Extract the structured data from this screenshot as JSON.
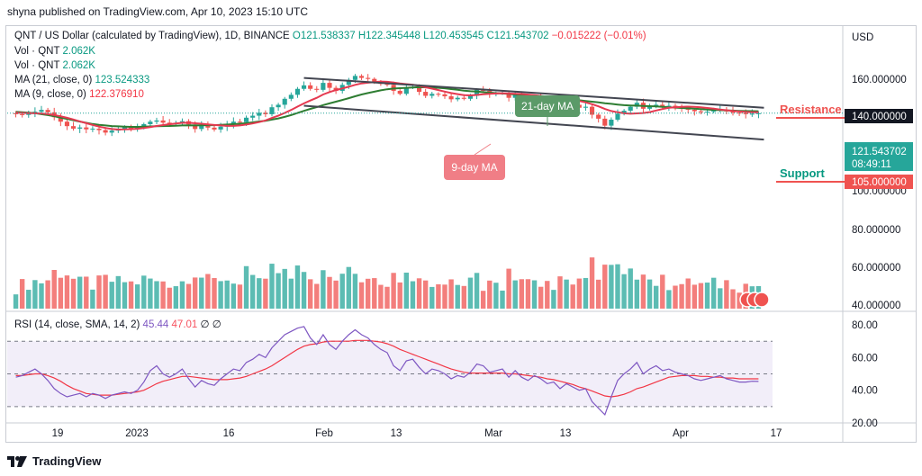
{
  "header": {
    "published": "shyna published on TradingView.com, Apr 10, 2023 15:10 UTC"
  },
  "legend": {
    "symbol": "QNT / US Dollar (calculated by TradingView), 1D, BINANCE",
    "open": "O121.538337",
    "high": "H122.345448",
    "low": "L120.453545",
    "close": "C121.543702",
    "change": "−0.015222 (−0.01%)",
    "vol1_label": "Vol · QNT",
    "vol1_value": "2.062K",
    "vol2_label": "Vol · QNT",
    "vol2_value": "2.062K",
    "ma21_label": "MA (21, close, 0)",
    "ma21_value": "123.524333",
    "ma9_label": "MA (9, close, 0)",
    "ma9_value": "122.376910",
    "rsi_label": "RSI (14, close, SMA, 14, 2)",
    "rsi_value": "45.44",
    "rsi_sma_value": "47.01",
    "rsi_extra": "∅ ∅"
  },
  "price_axis": {
    "currency": "USD",
    "ticks": [
      "160.000000",
      "140.000000",
      "121.543702",
      "08:49:11",
      "105.000000",
      "100.000000",
      "80.000000",
      "60.000000",
      "40.000000"
    ],
    "current_price": "121.543702",
    "countdown": "08:49:11"
  },
  "rsi_axis": {
    "ticks": [
      "80.00",
      "60.00",
      "40.00",
      "20.00"
    ]
  },
  "time_axis": {
    "ticks": [
      "19",
      "2023",
      "16",
      "Feb",
      "13",
      "Mar",
      "13",
      "Apr",
      "17"
    ]
  },
  "annotations": {
    "resistance_label": "Resistance",
    "resistance_price": "140.000000",
    "support_label": "Support",
    "support_price": "105.000000",
    "ma21_callout": "21-day MA",
    "ma9_callout": "9-day MA"
  },
  "footer": {
    "brand": "TradingView"
  },
  "colors": {
    "up": "#26a69a",
    "down": "#ef5350",
    "ma21": "#2e7d32",
    "ma9": "#e53950",
    "rsi": "#7e57c2",
    "rsi_sma": "#f23645",
    "channel": "#434651"
  },
  "chart_data": [
    {
      "type": "candlestick",
      "title": "QNT / US Dollar (calculated by TradingView), 1D, BINANCE",
      "x_start": "2022-12-12",
      "x_end": "2023-04-10",
      "ylim": [
        95,
        170
      ],
      "closes": [
        120.5,
        119.8,
        121,
        123,
        124.8,
        122.4,
        117.5,
        113,
        108.5,
        106,
        107.2,
        105.3,
        106,
        104.5,
        102,
        104,
        105.6,
        107.5,
        106.3,
        108,
        110.5,
        113,
        114.2,
        112,
        110.5,
        111.6,
        113.5,
        110.2,
        105.6,
        109,
        107,
        105.1,
        108,
        110.5,
        113,
        112.5,
        117,
        119,
        122,
        120.5,
        127.5,
        130,
        136,
        140,
        146,
        149.5,
        146,
        145,
        152,
        147,
        144,
        150,
        155,
        159,
        157,
        156,
        153,
        151,
        150,
        144,
        141,
        147.5,
        148,
        143,
        139,
        141,
        140.5,
        138.5,
        135.5,
        137,
        136,
        139,
        145,
        144,
        140.5,
        141.5,
        142,
        137,
        140.6,
        136,
        134.5,
        137,
        135,
        132,
        133,
        129,
        131.5,
        130,
        127,
        128,
        120,
        116,
        109,
        115,
        121,
        124,
        128,
        132,
        126,
        128.5,
        130,
        128,
        129,
        127,
        126,
        125,
        123.5,
        122.5,
        123,
        124,
        125,
        123.4,
        122,
        121.6,
        120.5,
        121,
        121.5
      ],
      "volume_ylim": [
        0,
        100
      ],
      "ma21": [
        123,
        122.5,
        122,
        121.5,
        120.5,
        119.6,
        118.4,
        117,
        115.7,
        114.4,
        113.1,
        111.8,
        110.7,
        109.8,
        109.2,
        108.6,
        108.3,
        108,
        107.8,
        107.8,
        107.9,
        108.2,
        108.5,
        108.6,
        108.7,
        108.9,
        109.2,
        109.3,
        109.2,
        109.4,
        109.5,
        109.5,
        109.8,
        110.1,
        110.5,
        110.9,
        111.5,
        112.3,
        113.2,
        113.8,
        115.1,
        116.3,
        117.8,
        119.6,
        121.7,
        123.9,
        125.9,
        127.6,
        129.7,
        131.4,
        133.1,
        134.8,
        136.6,
        138.5,
        140.3,
        141.8,
        143.1,
        144.5,
        145.6,
        146.3,
        146.7,
        147,
        147.4,
        147.7,
        147.6,
        147.4,
        147,
        146.6,
        145.8,
        145,
        144.1,
        143.6,
        143.2,
        142.7,
        142.2,
        141.7,
        141.3,
        140.9,
        140.3,
        139.6,
        138.9,
        138.6,
        138.1,
        137.5,
        137,
        136.4,
        135.8,
        135.1,
        134.5,
        133.8,
        133.1,
        132.4,
        131.6,
        130.9,
        130.2,
        129.6,
        129.3,
        129.1,
        128.8,
        128.6,
        128.3,
        127.9,
        127.5,
        127.1,
        126.8,
        126.4,
        126,
        125.6,
        125.2,
        124.9,
        124.6,
        124.3,
        124.1,
        123.9,
        123.7,
        123.6,
        123.5
      ],
      "ma9": [
        122,
        121.8,
        121.6,
        121.4,
        121.2,
        120.6,
        119.6,
        118.4,
        116.9,
        115.2,
        113.3,
        111.5,
        109.7,
        108,
        106.7,
        105.6,
        105.1,
        105.2,
        105.5,
        105.9,
        106.6,
        107.6,
        108.7,
        109.6,
        110.4,
        111.1,
        111.8,
        111.9,
        111.4,
        110.9,
        110.3,
        109.7,
        109.2,
        108.8,
        108.8,
        109.2,
        110.1,
        111.2,
        112.6,
        114.3,
        116.7,
        119,
        121.8,
        124.8,
        128.1,
        131.4,
        134.3,
        137,
        140.3,
        142.8,
        144.8,
        146.4,
        148.1,
        150,
        151.5,
        152.2,
        152.7,
        153.4,
        153.1,
        152.4,
        151.4,
        150.7,
        150.2,
        149.1,
        147.6,
        146.2,
        144.8,
        143.2,
        141.8,
        140.7,
        139.7,
        139.4,
        139.9,
        140.5,
        141,
        141.3,
        141.6,
        141.2,
        141,
        140.8,
        140.2,
        139.6,
        138.9,
        138.2,
        137.4,
        136.6,
        135.8,
        134.9,
        133.8,
        132.4,
        130.6,
        128.4,
        125.8,
        123.7,
        122.4,
        121.4,
        121,
        121.3,
        121.7,
        122.6,
        124.2,
        125.7,
        126.9,
        127.5,
        127.9,
        128.1,
        127.9,
        127.4,
        126.8,
        126.1,
        125.2,
        124.5,
        123.8,
        123.2,
        122.8,
        122.5,
        122.4
      ],
      "rsi_ylim": [
        20,
        85
      ],
      "rsi_bands": [
        30,
        50,
        70
      ],
      "rsi": [
        48,
        49,
        51,
        53,
        50,
        46,
        41,
        38,
        36,
        37,
        38,
        36,
        38,
        37,
        35,
        37,
        38,
        39,
        38,
        40,
        45,
        52,
        55,
        50,
        48,
        50,
        53,
        47,
        42,
        46,
        44,
        43,
        47,
        50,
        53,
        52,
        57,
        59,
        62,
        60,
        66,
        70,
        74,
        76,
        78,
        79,
        72,
        68,
        74,
        68,
        65,
        70,
        74,
        77,
        74,
        72,
        68,
        65,
        63,
        55,
        52,
        58,
        59,
        54,
        50,
        53,
        52,
        50,
        47,
        49,
        48,
        51,
        56,
        55,
        51,
        52,
        53,
        48,
        52,
        48,
        46,
        49,
        47,
        44,
        45,
        41,
        44,
        42,
        40,
        41,
        33,
        29,
        25,
        36,
        46,
        50,
        53,
        57,
        50,
        53,
        55,
        52,
        53,
        51,
        50,
        49,
        47,
        46,
        47,
        48,
        49,
        47,
        46,
        45,
        45,
        45.5,
        45.4
      ],
      "rsi_sma": [
        49,
        49,
        49.5,
        50,
        50,
        49,
        47.5,
        45.5,
        43,
        41,
        39.5,
        38,
        37.5,
        37,
        37,
        37,
        37.5,
        38,
        38.5,
        39,
        40,
        42,
        44,
        45.5,
        46.5,
        47.5,
        48.5,
        48.5,
        48,
        47.5,
        47,
        46.5,
        46.5,
        46.5,
        47,
        47.5,
        48.5,
        50,
        51.5,
        53,
        55,
        57.5,
        60,
        62.5,
        65,
        67,
        68,
        68.5,
        69.5,
        70,
        70,
        70,
        70,
        70.5,
        70.5,
        70.5,
        70,
        69.5,
        68.5,
        67,
        65,
        63.5,
        62,
        60.5,
        59,
        57.5,
        56,
        54.5,
        53,
        52,
        51,
        50.5,
        50.5,
        50.5,
        50.5,
        50.5,
        50.5,
        50,
        50,
        49.5,
        49,
        48.5,
        48,
        47,
        46.5,
        45.5,
        44.5,
        43.5,
        42,
        41,
        39.5,
        38,
        36.5,
        36,
        36.5,
        37.5,
        39,
        41,
        42,
        43.5,
        45,
        46.5,
        48,
        48.5,
        49,
        49,
        49,
        48.5,
        48.5,
        48,
        48,
        47.5,
        47.5,
        47,
        47,
        47,
        47
      ]
    }
  ]
}
